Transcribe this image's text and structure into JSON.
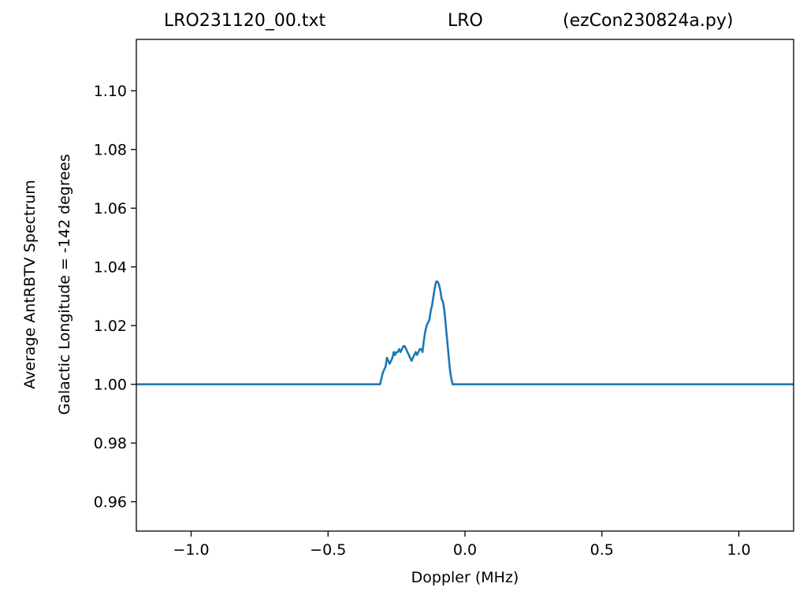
{
  "title": {
    "left": "LRO231120_00.txt",
    "center": "LRO",
    "right": "(ezCon230824a.py)"
  },
  "ylabel_line1": "Average AntRBTV Spectrum",
  "ylabel_line2": "Galactic Longitude = -142 degrees",
  "xlabel": "Doppler (MHz)",
  "chart_data": {
    "type": "line",
    "xlim": [
      -1.2,
      1.2
    ],
    "ylim": [
      0.95,
      1.1175
    ],
    "xticks": [
      -1.0,
      -0.5,
      0.0,
      0.5,
      1.0
    ],
    "xtick_labels": [
      "−1.0",
      "−0.5",
      "0.0",
      "0.5",
      "1.0"
    ],
    "yticks": [
      0.96,
      0.98,
      1.0,
      1.02,
      1.04,
      1.06,
      1.08,
      1.1
    ],
    "ytick_labels": [
      "0.96",
      "0.98",
      "1.00",
      "1.02",
      "1.04",
      "1.06",
      "1.08",
      "1.10"
    ],
    "grid": false,
    "series": [
      {
        "color": "#1f77b4",
        "x": [
          -1.2,
          -0.31,
          -0.3,
          -0.29,
          -0.285,
          -0.28,
          -0.275,
          -0.27,
          -0.265,
          -0.26,
          -0.255,
          -0.25,
          -0.245,
          -0.24,
          -0.235,
          -0.23,
          -0.225,
          -0.22,
          -0.215,
          -0.21,
          -0.205,
          -0.2,
          -0.195,
          -0.19,
          -0.185,
          -0.18,
          -0.175,
          -0.17,
          -0.165,
          -0.16,
          -0.155,
          -0.15,
          -0.145,
          -0.14,
          -0.135,
          -0.13,
          -0.125,
          -0.12,
          -0.115,
          -0.11,
          -0.105,
          -0.1,
          -0.095,
          -0.09,
          -0.085,
          -0.08,
          -0.075,
          -0.07,
          -0.065,
          -0.06,
          -0.055,
          -0.05,
          -0.045,
          -0.04,
          -0.035,
          -0.03,
          -0.025,
          -0.02,
          -0.015,
          -0.01,
          1.2
        ],
        "y": [
          1.0,
          1.0,
          1.004,
          1.006,
          1.009,
          1.008,
          1.007,
          1.008,
          1.009,
          1.011,
          1.01,
          1.011,
          1.011,
          1.012,
          1.011,
          1.012,
          1.013,
          1.013,
          1.012,
          1.011,
          1.01,
          1.009,
          1.008,
          1.009,
          1.01,
          1.011,
          1.01,
          1.011,
          1.012,
          1.012,
          1.011,
          1.015,
          1.018,
          1.02,
          1.021,
          1.022,
          1.025,
          1.027,
          1.03,
          1.033,
          1.035,
          1.035,
          1.034,
          1.032,
          1.029,
          1.028,
          1.025,
          1.02,
          1.015,
          1.01,
          1.005,
          1.002,
          1.0,
          1.0,
          1.0,
          1.0,
          1.0,
          1.0,
          1.0,
          1.0,
          1.0
        ]
      }
    ]
  }
}
